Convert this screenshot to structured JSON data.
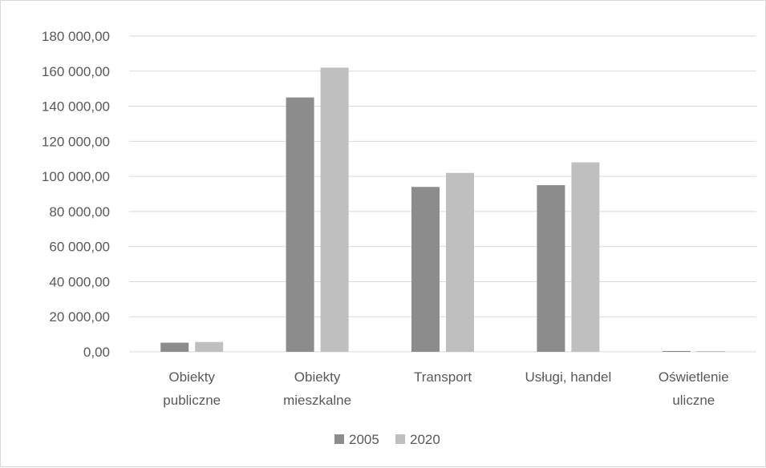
{
  "chart_data": {
    "type": "bar",
    "categories": [
      [
        "Obiekty",
        "publiczne"
      ],
      [
        "Obiekty",
        "mieszkalne"
      ],
      [
        "Transport"
      ],
      [
        "Usługi, handel"
      ],
      [
        "Oświetlenie",
        "uliczne"
      ]
    ],
    "series": [
      {
        "name": "2005",
        "color": "#8c8c8c",
        "values": [
          5200,
          145000,
          94000,
          95000,
          300
        ]
      },
      {
        "name": "2020",
        "color": "#bfbfbf",
        "values": [
          5600,
          162000,
          102000,
          108000,
          300
        ]
      }
    ],
    "y_ticks": [
      "0,00",
      "20 000,00",
      "40 000,00",
      "60 000,00",
      "80 000,00",
      "100 000,00",
      "120 000,00",
      "140 000,00",
      "160 000,00",
      "180 000,00"
    ],
    "ylim": [
      0,
      180000
    ],
    "grid": true,
    "legend_position": "bottom",
    "gridline_color": "#d9d9d9"
  }
}
